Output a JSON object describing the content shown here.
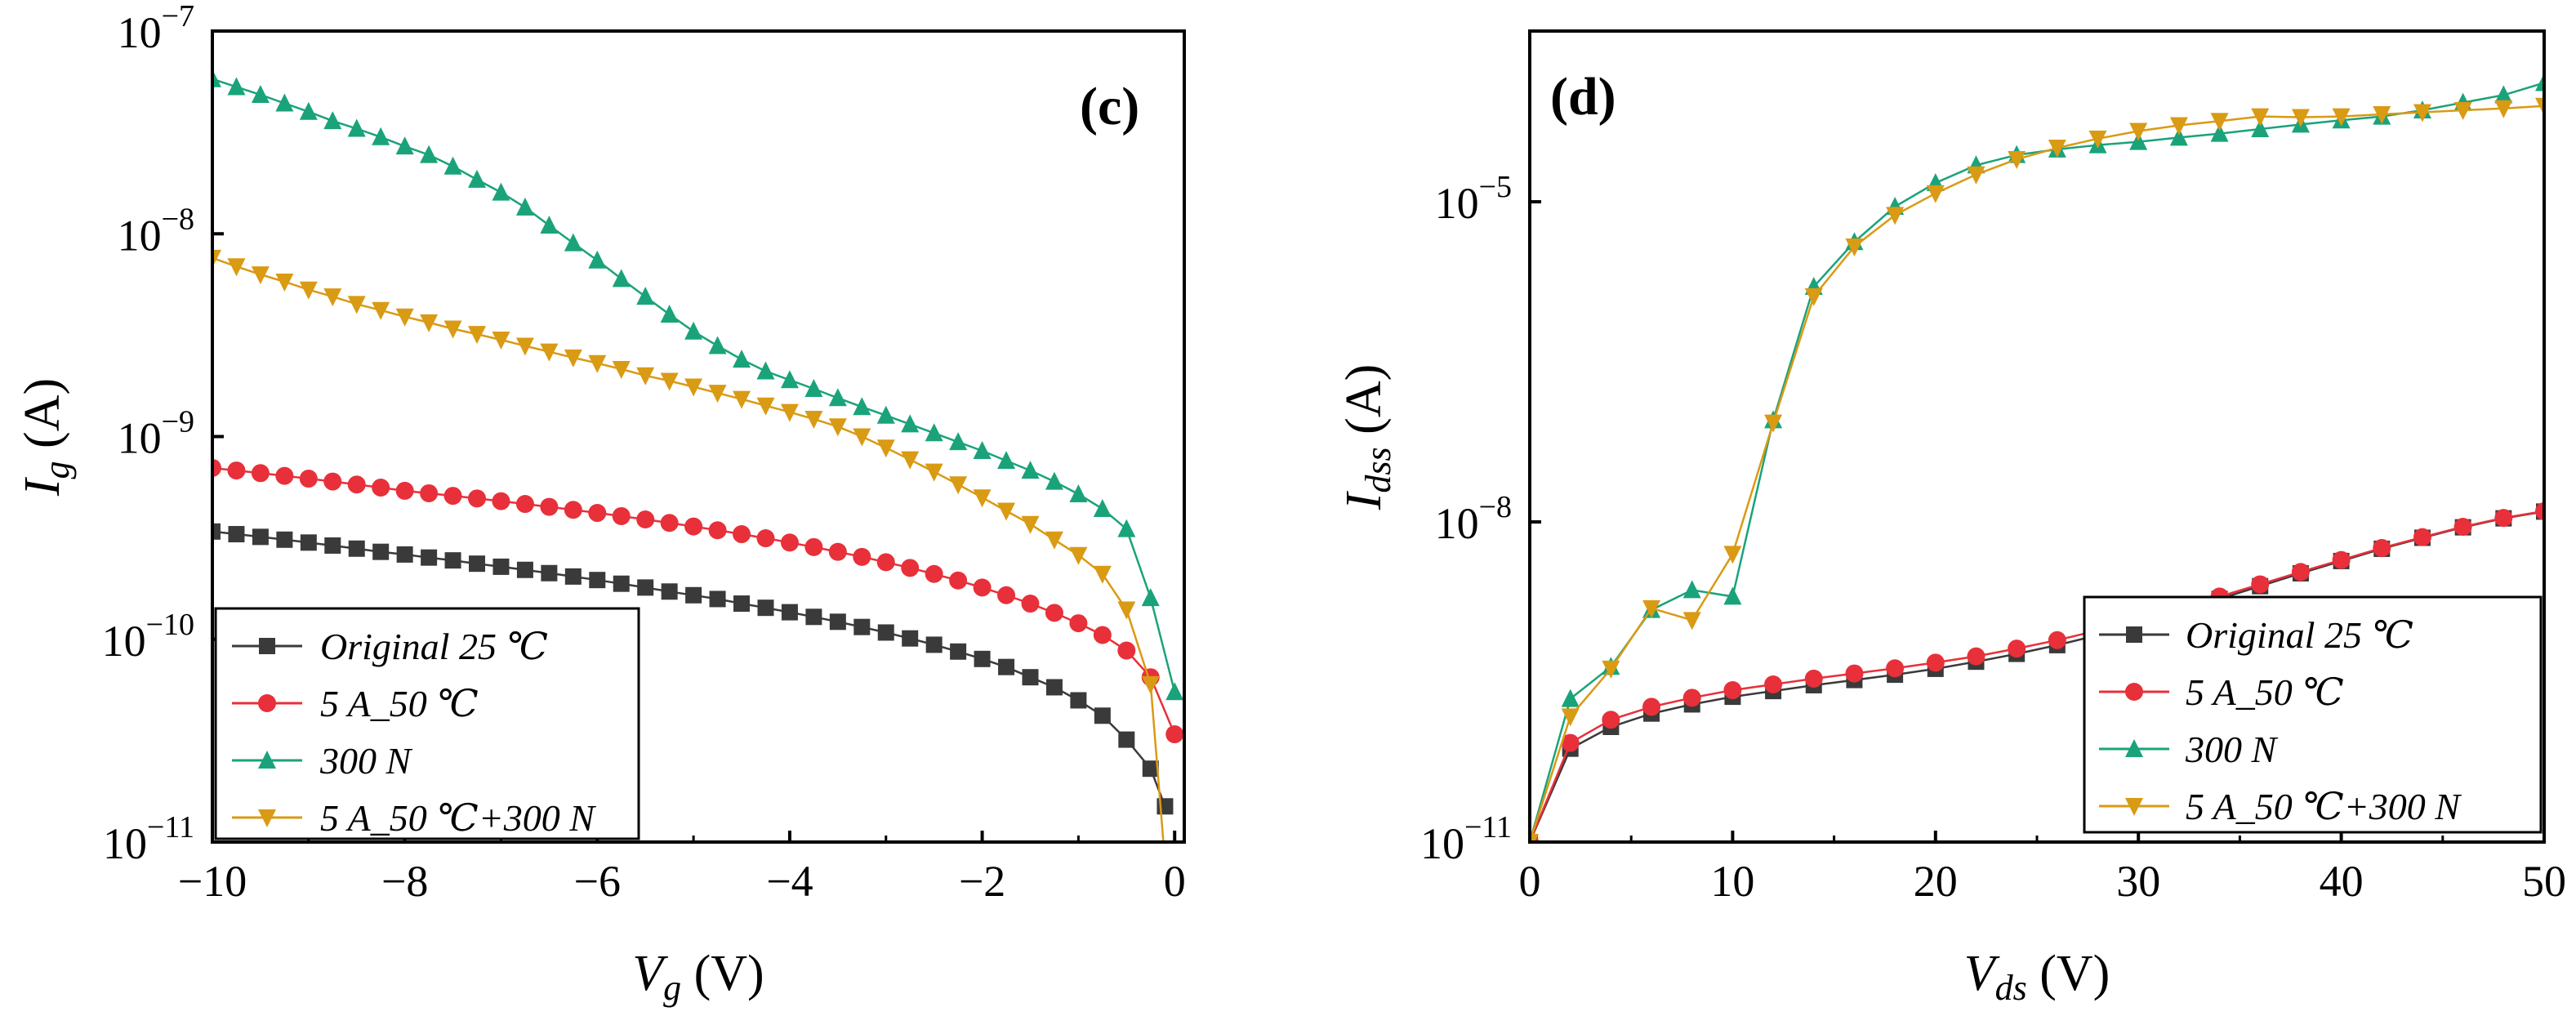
{
  "chart_data": [
    {
      "type": "line",
      "panel_label": "(c)",
      "xlabel": {
        "sym": "V",
        "sub": "g",
        "unit": " (V)"
      },
      "ylabel": {
        "sym": "I",
        "sub": "g",
        "unit": " (A)"
      },
      "xlim": [
        -10,
        0.1
      ],
      "ylim_log10": [
        -11,
        -7
      ],
      "y_scale": "log",
      "x_ticks": [
        -10,
        -8,
        -6,
        -4,
        -2,
        0
      ],
      "x_tick_labels": [
        "−10",
        "−8",
        "−6",
        "−4",
        "−2",
        "0"
      ],
      "y_tick_exponents": [
        -11,
        -10,
        -9,
        -8,
        -7
      ],
      "legend_position": "bottom-left",
      "series": [
        {
          "name": "Original 25 ℃",
          "color": "#3a3a3a",
          "marker": "square",
          "x": [
            -10,
            -9.75,
            -9.5,
            -9.25,
            -9,
            -8.75,
            -8.5,
            -8.25,
            -8,
            -7.75,
            -7.5,
            -7.25,
            -7,
            -6.75,
            -6.5,
            -6.25,
            -6,
            -5.75,
            -5.5,
            -5.25,
            -5,
            -4.75,
            -4.5,
            -4.25,
            -4,
            -3.75,
            -3.5,
            -3.25,
            -3,
            -2.75,
            -2.5,
            -2.25,
            -2,
            -1.75,
            -1.5,
            -1.25,
            -1,
            -0.75,
            -0.5,
            -0.25,
            -0.1
          ],
          "y": [
            3.4e-10,
            3.3e-10,
            3.2e-10,
            3.1e-10,
            3e-10,
            2.9e-10,
            2.8e-10,
            2.7e-10,
            2.62e-10,
            2.53e-10,
            2.45e-10,
            2.36e-10,
            2.28e-10,
            2.2e-10,
            2.12e-10,
            2.04e-10,
            1.96e-10,
            1.88e-10,
            1.8e-10,
            1.72e-10,
            1.65e-10,
            1.58e-10,
            1.5e-10,
            1.43e-10,
            1.36e-10,
            1.29e-10,
            1.22e-10,
            1.15e-10,
            1.08e-10,
            1.01e-10,
            9.4e-11,
            8.7e-11,
            8e-11,
            7.3e-11,
            6.5e-11,
            5.8e-11,
            5e-11,
            4.2e-11,
            3.2e-11,
            2.3e-11,
            1.5e-11
          ]
        },
        {
          "name": "5 A_50 ℃",
          "color": "#e8303a",
          "marker": "circle",
          "x": [
            -10,
            -9.75,
            -9.5,
            -9.25,
            -9,
            -8.75,
            -8.5,
            -8.25,
            -8,
            -7.75,
            -7.5,
            -7.25,
            -7,
            -6.75,
            -6.5,
            -6.25,
            -6,
            -5.75,
            -5.5,
            -5.25,
            -5,
            -4.75,
            -4.5,
            -4.25,
            -4,
            -3.75,
            -3.5,
            -3.25,
            -3,
            -2.75,
            -2.5,
            -2.25,
            -2,
            -1.75,
            -1.5,
            -1.25,
            -1,
            -0.75,
            -0.5,
            -0.25,
            0
          ],
          "y": [
            7e-10,
            6.8e-10,
            6.6e-10,
            6.4e-10,
            6.2e-10,
            6e-10,
            5.8e-10,
            5.6e-10,
            5.4e-10,
            5.25e-10,
            5.1e-10,
            4.95e-10,
            4.8e-10,
            4.65e-10,
            4.5e-10,
            4.35e-10,
            4.2e-10,
            4.05e-10,
            3.9e-10,
            3.75e-10,
            3.6e-10,
            3.45e-10,
            3.3e-10,
            3.15e-10,
            3e-10,
            2.85e-10,
            2.7e-10,
            2.55e-10,
            2.4e-10,
            2.25e-10,
            2.1e-10,
            1.95e-10,
            1.8e-10,
            1.65e-10,
            1.5e-10,
            1.35e-10,
            1.2e-10,
            1.05e-10,
            8.8e-11,
            6.5e-11,
            3.4e-11
          ]
        },
        {
          "name": "300 N",
          "color": "#1aa37a",
          "marker": "triangle-up",
          "x": [
            -10,
            -9.75,
            -9.5,
            -9.25,
            -9,
            -8.75,
            -8.5,
            -8.25,
            -8,
            -7.75,
            -7.5,
            -7.25,
            -7,
            -6.75,
            -6.5,
            -6.25,
            -6,
            -5.75,
            -5.5,
            -5.25,
            -5,
            -4.75,
            -4.5,
            -4.25,
            -4,
            -3.75,
            -3.5,
            -3.25,
            -3,
            -2.75,
            -2.5,
            -2.25,
            -2,
            -1.75,
            -1.5,
            -1.25,
            -1,
            -0.75,
            -0.5,
            -0.25,
            0
          ],
          "y": [
            5.8e-08,
            5.3e-08,
            4.85e-08,
            4.4e-08,
            4e-08,
            3.6e-08,
            3.3e-08,
            3e-08,
            2.7e-08,
            2.45e-08,
            2.15e-08,
            1.85e-08,
            1.6e-08,
            1.35e-08,
            1.1e-08,
            9e-09,
            7.4e-09,
            6e-09,
            4.9e-09,
            4e-09,
            3.3e-09,
            2.8e-09,
            2.4e-09,
            2.1e-09,
            1.9e-09,
            1.72e-09,
            1.55e-09,
            1.4e-09,
            1.27e-09,
            1.15e-09,
            1.04e-09,
            9.4e-10,
            8.5e-10,
            7.6e-10,
            6.8e-10,
            6e-10,
            5.2e-10,
            4.4e-10,
            3.5e-10,
            1.6e-10,
            5.5e-11
          ]
        },
        {
          "name": "5 A_50 ℃+300 N",
          "color": "#d99a14",
          "marker": "triangle-down",
          "x": [
            -10,
            -9.75,
            -9.5,
            -9.25,
            -9,
            -8.75,
            -8.5,
            -8.25,
            -8,
            -7.75,
            -7.5,
            -7.25,
            -7,
            -6.75,
            -6.5,
            -6.25,
            -6,
            -5.75,
            -5.5,
            -5.25,
            -5,
            -4.75,
            -4.5,
            -4.25,
            -4,
            -3.75,
            -3.5,
            -3.25,
            -3,
            -2.75,
            -2.5,
            -2.25,
            -2,
            -1.75,
            -1.5,
            -1.25,
            -1,
            -0.75,
            -0.5,
            -0.25,
            -0.1
          ],
          "y": [
            7.6e-09,
            6.9e-09,
            6.3e-09,
            5.8e-09,
            5.3e-09,
            4.9e-09,
            4.5e-09,
            4.2e-09,
            3.9e-09,
            3.65e-09,
            3.4e-09,
            3.2e-09,
            3e-09,
            2.8e-09,
            2.62e-09,
            2.45e-09,
            2.3e-09,
            2.15e-09,
            2e-09,
            1.88e-09,
            1.76e-09,
            1.64e-09,
            1.53e-09,
            1.42e-09,
            1.32e-09,
            1.22e-09,
            1.12e-09,
            1e-09,
            8.8e-10,
            7.7e-10,
            6.7e-10,
            5.8e-10,
            5e-10,
            4.3e-10,
            3.7e-10,
            3.1e-10,
            2.6e-10,
            2.1e-10,
            1.4e-10,
            6e-11,
            8e-12
          ]
        }
      ]
    },
    {
      "type": "line",
      "panel_label": "(d)",
      "xlabel": {
        "sym": "V",
        "sub": "ds",
        "unit": " (V)"
      },
      "ylabel": {
        "sym": "I",
        "sub": "dss",
        "unit": " (A)"
      },
      "xlim": [
        0,
        50
      ],
      "ylim_log10": [
        -11,
        -3.4
      ],
      "y_scale": "log",
      "x_ticks": [
        0,
        10,
        20,
        30,
        40,
        50
      ],
      "x_tick_labels": [
        "0",
        "10",
        "20",
        "30",
        "40",
        "50"
      ],
      "y_tick_exponents": [
        -11,
        -8,
        -5
      ],
      "legend_position": "bottom-right",
      "series": [
        {
          "name": "Original 25 ℃",
          "color": "#3a3a3a",
          "marker": "square",
          "x": [
            0,
            2,
            4,
            6,
            8,
            10,
            12,
            14,
            16,
            18,
            20,
            22,
            24,
            26,
            28,
            30,
            32,
            34,
            36,
            38,
            40,
            42,
            44,
            46,
            48,
            50
          ],
          "y": [
            1e-11,
            7.5e-11,
            1.2e-10,
            1.6e-10,
            1.95e-10,
            2.3e-10,
            2.6e-10,
            2.95e-10,
            3.3e-10,
            3.7e-10,
            4.2e-10,
            4.9e-10,
            5.8e-10,
            7e-10,
            8.7e-10,
            1.1e-09,
            1.45e-09,
            1.9e-09,
            2.5e-09,
            3.3e-09,
            4.3e-09,
            5.6e-09,
            7.1e-09,
            8.9e-09,
            1.08e-08,
            1.25e-08
          ]
        },
        {
          "name": "5 A_50 ℃",
          "color": "#e8303a",
          "marker": "circle",
          "x": [
            0,
            2,
            4,
            6,
            8,
            10,
            12,
            14,
            16,
            18,
            20,
            22,
            24,
            26,
            28,
            30,
            32,
            34,
            36,
            38,
            40,
            42,
            44,
            46,
            48,
            50
          ],
          "y": [
            1e-11,
            8.5e-11,
            1.4e-10,
            1.85e-10,
            2.25e-10,
            2.65e-10,
            3e-10,
            3.4e-10,
            3.8e-10,
            4.25e-10,
            4.8e-10,
            5.5e-10,
            6.5e-10,
            7.8e-10,
            9.6e-10,
            1.2e-09,
            1.55e-09,
            2e-09,
            2.6e-09,
            3.4e-09,
            4.4e-09,
            5.7e-09,
            7.2e-09,
            9e-09,
            1.09e-08,
            1.26e-08
          ]
        },
        {
          "name": "300 N",
          "color": "#1aa37a",
          "marker": "triangle-up",
          "x": [
            0,
            2,
            4,
            6,
            8,
            10,
            12,
            14,
            16,
            18,
            20,
            22,
            24,
            26,
            28,
            30,
            32,
            34,
            36,
            38,
            40,
            42,
            44,
            46,
            48,
            50
          ],
          "y": [
            1e-11,
            2.2e-10,
            4.4e-10,
            1.5e-09,
            2.3e-09,
            2e-09,
            9e-08,
            1.6e-06,
            4.2e-06,
            9e-06,
            1.5e-05,
            2.2e-05,
            2.75e-05,
            3.1e-05,
            3.4e-05,
            3.65e-05,
            4e-05,
            4.35e-05,
            4.8e-05,
            5.3e-05,
            5.8e-05,
            6.3e-05,
            7.2e-05,
            8.5e-05,
            0.0001,
            0.00013
          ]
        },
        {
          "name": "5 A_50 ℃+300 N",
          "color": "#d99a14",
          "marker": "triangle-down",
          "x": [
            0,
            2,
            4,
            6,
            8,
            10,
            12,
            14,
            16,
            18,
            20,
            22,
            24,
            26,
            28,
            30,
            32,
            34,
            36,
            38,
            40,
            42,
            44,
            46,
            48,
            50
          ],
          "y": [
            1e-11,
            1.5e-10,
            4.2e-10,
            1.55e-09,
            1.2e-09,
            5e-09,
            8.5e-08,
            1.3e-06,
            3.8e-06,
            7.5e-06,
            1.2e-05,
            1.8e-05,
            2.5e-05,
            3.2e-05,
            3.9e-05,
            4.6e-05,
            5.2e-05,
            5.7e-05,
            6.3e-05,
            6.2e-05,
            6.3e-05,
            6.6e-05,
            6.9e-05,
            7.2e-05,
            7.5e-05,
            7.9e-05
          ]
        }
      ]
    }
  ]
}
